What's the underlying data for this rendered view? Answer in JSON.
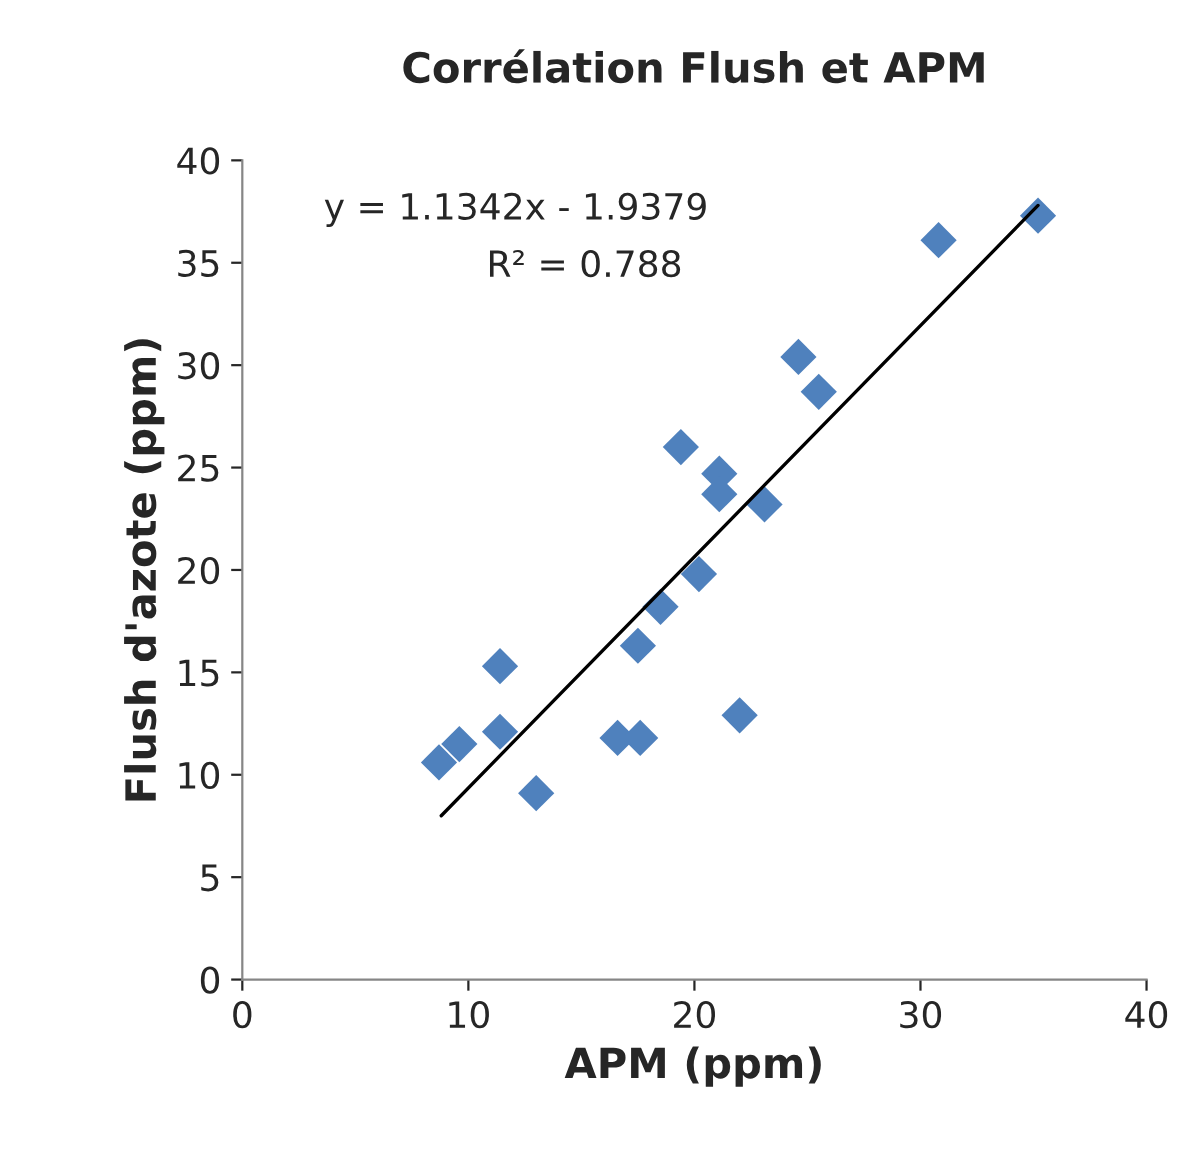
{
  "chart_data": {
    "type": "scatter",
    "title": "Corrélation Flush et APM",
    "xlabel": "APM (ppm)",
    "ylabel": "Flush d'azote (ppm)",
    "series": [
      {
        "color": "#4f81bd",
        "marker": "diamond",
        "x": [
          11.4,
          9.6,
          8.7,
          11.4,
          13.0,
          16.6,
          17.6,
          22.0,
          17.5,
          18.5,
          35.2,
          30.8,
          24.6,
          25.5,
          19.4,
          21.1,
          21.1,
          23.1,
          20.2
        ],
        "values": [
          15.3,
          11.5,
          10.6,
          12.1,
          9.1,
          11.8,
          11.8,
          12.9,
          16.3,
          18.2,
          37.3,
          36.1,
          30.4,
          28.7,
          26.0,
          24.7,
          23.7,
          23.2,
          19.8
        ]
      },
      {
        "type": "line",
        "color": "#000000",
        "marker": "none",
        "x": [
          8.8,
          35.2
        ],
        "values": [
          8.0,
          37.8
        ]
      }
    ],
    "annotations": [
      "y = 1.1342x - 1.9379",
      "R² = 0.788"
    ],
    "xlim": [
      0,
      40
    ],
    "xticks": [
      0,
      10,
      20,
      30,
      40
    ],
    "ylim": [
      0,
      40
    ],
    "yticks": [
      0,
      5,
      10,
      15,
      20,
      25,
      30,
      35,
      40
    ],
    "grid": false,
    "legend": false
  }
}
